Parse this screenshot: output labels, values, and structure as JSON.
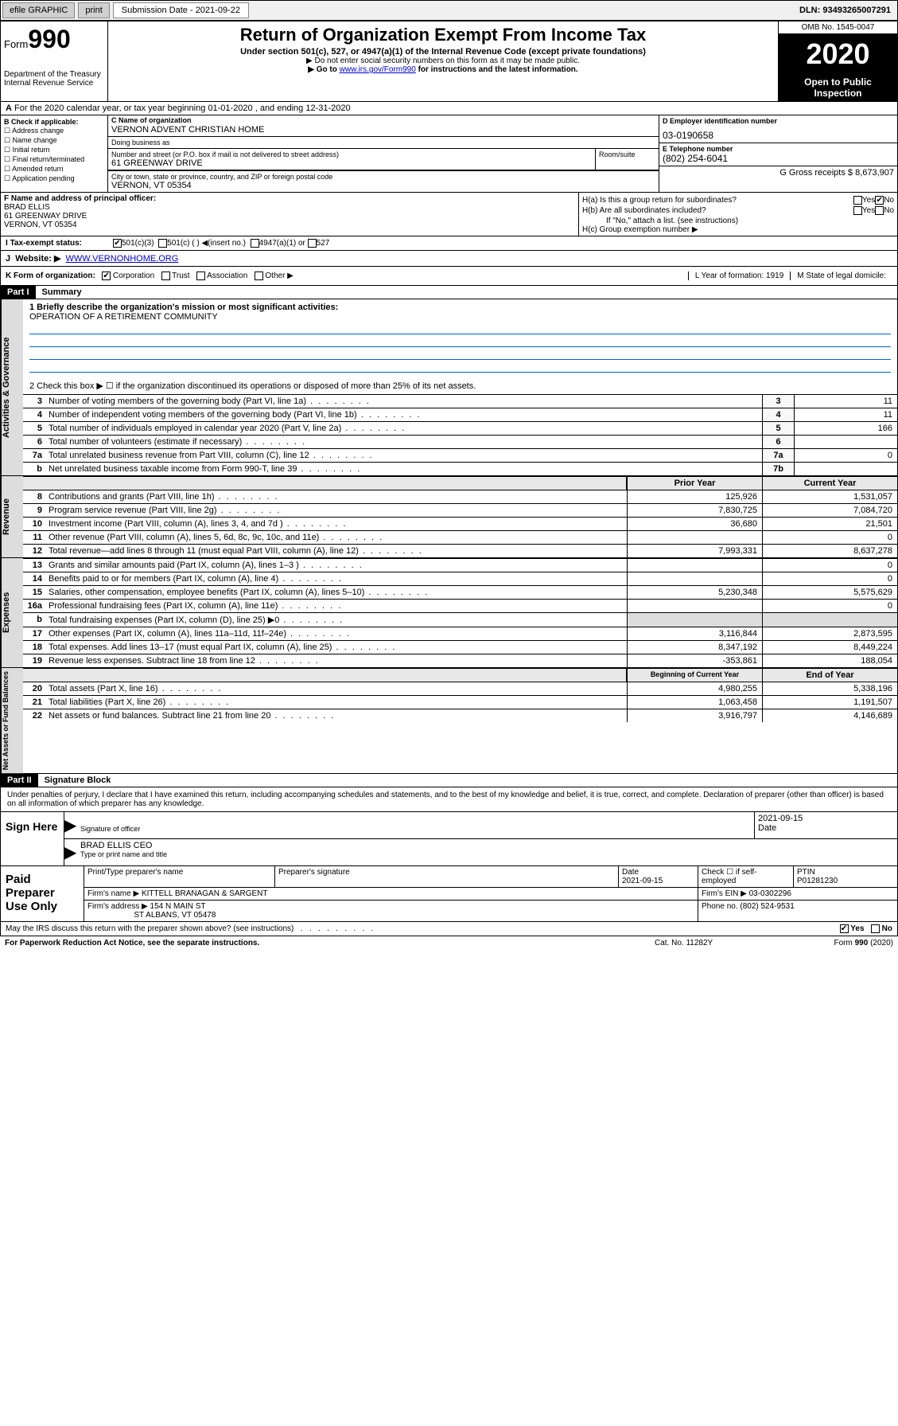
{
  "topbar": {
    "efile": "efile GRAPHIC",
    "print": "print",
    "sub_label": "Submission Date - 2021-09-22",
    "dln": "DLN: 93493265007291"
  },
  "header": {
    "form_prefix": "Form",
    "form_num": "990",
    "dept1": "Department of the Treasury",
    "dept2": "Internal Revenue Service",
    "title": "Return of Organization Exempt From Income Tax",
    "subtitle": "Under section 501(c), 527, or 4947(a)(1) of the Internal Revenue Code (except private foundations)",
    "note1": "▶ Do not enter social security numbers on this form as it may be made public.",
    "note2": "▶ Go to www.irs.gov/Form990 for instructions and the latest information.",
    "omb": "OMB No. 1545-0047",
    "year": "2020",
    "open": "Open to Public Inspection"
  },
  "lineA": "For the 2020 calendar year, or tax year beginning 01-01-2020   , and ending 12-31-2020",
  "checkB": {
    "header": "B Check if applicable:",
    "items": [
      "☐ Address change",
      "☐ Name change",
      "☐ Initial return",
      "☐ Final return/terminated",
      "☐ Amended return",
      "☐ Application pending"
    ]
  },
  "nameBlock": {
    "c_label": "C Name of organization",
    "c_name": "VERNON ADVENT CHRISTIAN HOME",
    "dba_label": "Doing business as",
    "street_label": "Number and street (or P.O. box if mail is not delivered to street address)",
    "street": "61 GREENWAY DRIVE",
    "room_label": "Room/suite",
    "city_label": "City or town, state or province, country, and ZIP or foreign postal code",
    "city": "VERNON, VT 05354"
  },
  "colD": {
    "d_label": "D Employer identification number",
    "ein": "03-0190658",
    "e_label": "E Telephone number",
    "phone": "(802) 254-6041",
    "g_label": "G Gross receipts $ 8,673,907"
  },
  "colF": {
    "label": "F  Name and address of principal officer:",
    "name": "BRAD ELLIS",
    "addr1": "61 GREENWAY DRIVE",
    "addr2": "VERNON, VT  05354"
  },
  "colH": {
    "ha": "H(a)  Is this a group return for subordinates?",
    "hb": "H(b)  Are all subordinates included?",
    "hb_note": "If \"No,\" attach a list. (see instructions)",
    "hc": "H(c)  Group exemption number ▶"
  },
  "rowI": {
    "label": "Tax-exempt status:",
    "opts": [
      "501(c)(3)",
      "501(c) (  ) ◀(insert no.)",
      "4947(a)(1) or",
      "527"
    ]
  },
  "rowJ": {
    "label": "Website: ▶",
    "url": "WWW.VERNONHOME.ORG"
  },
  "rowK": {
    "label": "K Form of organization:",
    "opts": [
      "Corporation",
      "Trust",
      "Association",
      "Other ▶"
    ],
    "l_label": "L Year of formation: 1919",
    "m_label": "M State of legal domicile:"
  },
  "part1": {
    "header": "Part I",
    "title": "Summary",
    "line1_label": "1  Briefly describe the organization's mission or most significant activities:",
    "line1_text": "OPERATION OF A RETIREMENT COMMUNITY",
    "line2": "2   Check this box ▶ ☐  if the organization discontinued its operations or disposed of more than 25% of its net assets.",
    "lines_gov": [
      {
        "n": "3",
        "d": "Number of voting members of the governing body (Part VI, line 1a)",
        "box": "3",
        "v": "11"
      },
      {
        "n": "4",
        "d": "Number of independent voting members of the governing body (Part VI, line 1b)",
        "box": "4",
        "v": "11"
      },
      {
        "n": "5",
        "d": "Total number of individuals employed in calendar year 2020 (Part V, line 2a)",
        "box": "5",
        "v": "166"
      },
      {
        "n": "6",
        "d": "Total number of volunteers (estimate if necessary)",
        "box": "6",
        "v": ""
      },
      {
        "n": "7a",
        "d": "Total unrelated business revenue from Part VIII, column (C), line 12",
        "box": "7a",
        "v": "0"
      },
      {
        "n": "b",
        "d": "Net unrelated business taxable income from Form 990-T, line 39",
        "box": "7b",
        "v": ""
      }
    ],
    "prior_header": "Prior Year",
    "current_header": "Current Year",
    "lines_rev": [
      {
        "n": "8",
        "d": "Contributions and grants (Part VIII, line 1h)",
        "p": "125,926",
        "c": "1,531,057"
      },
      {
        "n": "9",
        "d": "Program service revenue (Part VIII, line 2g)",
        "p": "7,830,725",
        "c": "7,084,720"
      },
      {
        "n": "10",
        "d": "Investment income (Part VIII, column (A), lines 3, 4, and 7d )",
        "p": "36,680",
        "c": "21,501"
      },
      {
        "n": "11",
        "d": "Other revenue (Part VIII, column (A), lines 5, 6d, 8c, 9c, 10c, and 11e)",
        "p": "",
        "c": "0"
      },
      {
        "n": "12",
        "d": "Total revenue—add lines 8 through 11 (must equal Part VIII, column (A), line 12)",
        "p": "7,993,331",
        "c": "8,637,278"
      }
    ],
    "lines_exp": [
      {
        "n": "13",
        "d": "Grants and similar amounts paid (Part IX, column (A), lines 1–3 )",
        "p": "",
        "c": "0"
      },
      {
        "n": "14",
        "d": "Benefits paid to or for members (Part IX, column (A), line 4)",
        "p": "",
        "c": "0"
      },
      {
        "n": "15",
        "d": "Salaries, other compensation, employee benefits (Part IX, column (A), lines 5–10)",
        "p": "5,230,348",
        "c": "5,575,629"
      },
      {
        "n": "16a",
        "d": "Professional fundraising fees (Part IX, column (A), line 11e)",
        "p": "",
        "c": "0"
      },
      {
        "n": "b",
        "d": "Total fundraising expenses (Part IX, column (D), line 25) ▶0",
        "p": "gray",
        "c": "gray"
      },
      {
        "n": "17",
        "d": "Other expenses (Part IX, column (A), lines 11a–11d, 11f–24e)",
        "p": "3,116,844",
        "c": "2,873,595"
      },
      {
        "n": "18",
        "d": "Total expenses. Add lines 13–17 (must equal Part IX, column (A), line 25)",
        "p": "8,347,192",
        "c": "8,449,224"
      },
      {
        "n": "19",
        "d": "Revenue less expenses. Subtract line 18 from line 12",
        "p": "-353,861",
        "c": "188,054"
      }
    ],
    "begin_header": "Beginning of Current Year",
    "end_header": "End of Year",
    "lines_net": [
      {
        "n": "20",
        "d": "Total assets (Part X, line 16)",
        "p": "4,980,255",
        "c": "5,338,196"
      },
      {
        "n": "21",
        "d": "Total liabilities (Part X, line 26)",
        "p": "1,063,458",
        "c": "1,191,507"
      },
      {
        "n": "22",
        "d": "Net assets or fund balances. Subtract line 21 from line 20",
        "p": "3,916,797",
        "c": "4,146,689"
      }
    ],
    "side_gov": "Activities & Governance",
    "side_rev": "Revenue",
    "side_exp": "Expenses",
    "side_net": "Net Assets or Fund Balances"
  },
  "part2": {
    "header": "Part II",
    "title": "Signature Block",
    "perjury": "Under penalties of perjury, I declare that I have examined this return, including accompanying schedules and statements, and to the best of my knowledge and belief, it is true, correct, and complete. Declaration of preparer (other than officer) is based on all information of which preparer has any knowledge.",
    "sign_here": "Sign Here",
    "sig_officer": "Signature of officer",
    "sig_date": "2021-09-15",
    "date_lbl": "Date",
    "officer_name": "BRAD ELLIS CEO",
    "type_name": "Type or print name and title",
    "paid": "Paid Preparer Use Only",
    "prep_name_lbl": "Print/Type preparer's name",
    "prep_sig_lbl": "Preparer's signature",
    "prep_date_lbl": "Date",
    "prep_date": "2021-09-15",
    "check_self": "Check ☐ if self-employed",
    "ptin_lbl": "PTIN",
    "ptin": "P01281230",
    "firm_name_lbl": "Firm's name    ▶",
    "firm_name": "KITTELL BRANAGAN & SARGENT",
    "firm_ein": "Firm's EIN ▶ 03-0302296",
    "firm_addr_lbl": "Firm's address ▶",
    "firm_addr1": "154 N MAIN ST",
    "firm_addr2": "ST ALBANS, VT  05478",
    "phone": "Phone no. (802) 524-9531",
    "discuss": "May the IRS discuss this return with the preparer shown above? (see instructions)",
    "paperwork": "For Paperwork Reduction Act Notice, see the separate instructions.",
    "cat": "Cat. No. 11282Y",
    "formnum": "Form 990 (2020)"
  }
}
